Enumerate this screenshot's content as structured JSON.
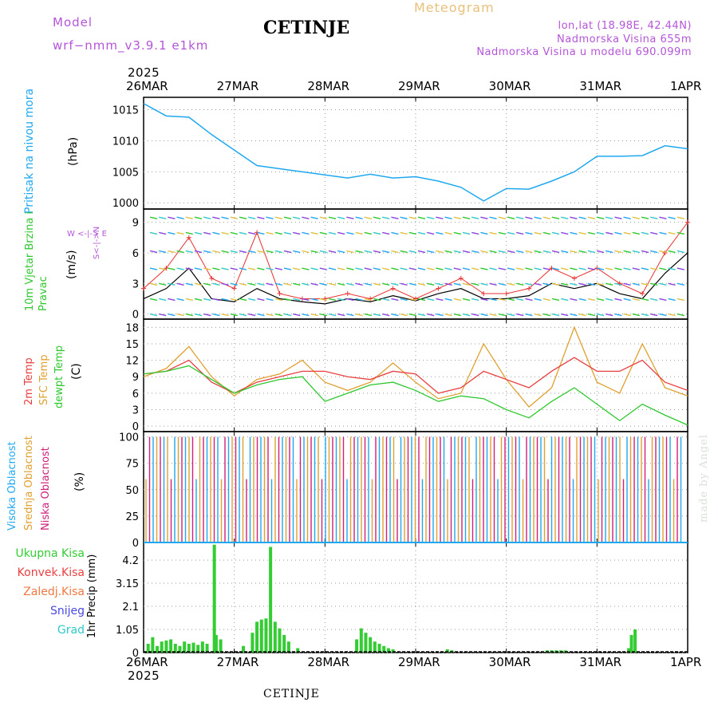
{
  "header": {
    "model_label": "Model",
    "model_name": "wrf−nmm_v3.9.1 e1km",
    "station": "CETINJE",
    "product": "Meteogram",
    "lonlat": "lon,lat (18.98E, 42.44N)",
    "elevation": "Nadmorska Visina 655m",
    "model_elevation": "Nadmorska Visina u modelu 690.099m"
  },
  "time_axis": {
    "year": "2025",
    "days": [
      "26MAR",
      "27MAR",
      "28MAR",
      "29MAR",
      "30MAR",
      "31MAR",
      "1APR"
    ]
  },
  "footer": {
    "station": "CETINJE",
    "credit": "made by Angel"
  },
  "colors": {
    "pressure": "#1fa8f0",
    "wind_speed": "#000000",
    "wind_gust": "#e8312f",
    "temp2m": "#e84040",
    "sfc_temp": "#e0a030",
    "dewpoint": "#2ec82e",
    "cloud_high": "#1fa8f0",
    "cloud_mid": "#e0a030",
    "cloud_low": "#d0207a",
    "precip_total": "#33cc33",
    "precip_conv": "#e84040",
    "precip_frozen": "#f07840",
    "snow": "#4848e0",
    "graupel": "#30c8c8"
  },
  "chart_data": [
    {
      "type": "line",
      "title": "",
      "ylabel": "Pritisak na nivou mora",
      "unit": "(hPa)",
      "ylim": [
        999,
        1017
      ],
      "yticks": [
        1000,
        1005,
        1010,
        1015
      ],
      "x_days": [
        0,
        0.25,
        0.5,
        0.75,
        1,
        1.25,
        1.5,
        1.75,
        2,
        2.25,
        2.5,
        2.75,
        3,
        3.25,
        3.5,
        3.75,
        4,
        4.25,
        4.5,
        4.75,
        5,
        5.25,
        5.5,
        5.75,
        6
      ],
      "series": [
        {
          "values": [
            1016,
            1014,
            1013.8,
            1011,
            1008.5,
            1006,
            1005.5,
            1005,
            1004.5,
            1004,
            1004.6,
            1004,
            1004.2,
            1003.5,
            1002.5,
            1000.3,
            1002.3,
            1002.2,
            1003.5,
            1005,
            1007.5,
            1007.5,
            1007.6,
            1009.2,
            1008.7
          ]
        }
      ]
    },
    {
      "type": "line",
      "title": "",
      "ylabel": "10m Vjetar Brzina i Pravac",
      "unit": "(m/s)",
      "ylim": [
        -0.5,
        10.3
      ],
      "yticks": [
        0,
        3,
        6,
        9
      ],
      "compass": {
        "n": "N",
        "s": "S",
        "e": "E",
        "w": "W"
      },
      "x_days": [
        0,
        0.25,
        0.5,
        0.75,
        1,
        1.25,
        1.5,
        1.75,
        2,
        2.25,
        2.5,
        2.75,
        3,
        3.25,
        3.5,
        3.75,
        4,
        4.25,
        4.5,
        4.75,
        5,
        5.25,
        5.5,
        5.75,
        6
      ],
      "series": [
        {
          "name": "speed",
          "values": [
            1.5,
            2.5,
            4.5,
            1.5,
            1.2,
            2.5,
            1.5,
            1.2,
            1,
            1.5,
            1.2,
            1.8,
            1.3,
            2,
            2.5,
            1.5,
            1.5,
            1.8,
            3,
            2.5,
            3,
            2,
            1.5,
            4,
            6
          ]
        },
        {
          "name": "gust",
          "values": [
            2.5,
            4.5,
            7.5,
            3.5,
            2.5,
            8,
            2,
            1.5,
            1.5,
            2,
            1.5,
            2.5,
            1.5,
            2.5,
            3.5,
            2,
            2,
            2.5,
            4.5,
            3.5,
            4.5,
            3,
            2,
            6,
            9
          ]
        }
      ]
    },
    {
      "type": "line",
      "title": "",
      "ylabel": "2m Temp / SFC Temp / dewpt Temp",
      "unit": "(C)",
      "ylim": [
        -1,
        19.5
      ],
      "yticks": [
        0,
        3,
        6,
        9,
        12,
        15,
        18
      ],
      "x_days": [
        0,
        0.25,
        0.5,
        0.75,
        1,
        1.25,
        1.5,
        1.75,
        2,
        2.25,
        2.5,
        2.75,
        3,
        3.25,
        3.5,
        3.75,
        4,
        4.25,
        4.5,
        4.75,
        5,
        5.25,
        5.5,
        5.75,
        6
      ],
      "series": [
        {
          "name": "2m Temp",
          "values": [
            9.5,
            10,
            12,
            8,
            6,
            8,
            9,
            10,
            10,
            9,
            8.5,
            10,
            9.5,
            6,
            7,
            10,
            8.5,
            7,
            10,
            12.5,
            10,
            10,
            12,
            8,
            6.5
          ]
        },
        {
          "name": "SFC Temp",
          "values": [
            9,
            10.5,
            14.5,
            9,
            5.5,
            8.5,
            9.5,
            12,
            8,
            6.5,
            8,
            11.5,
            8,
            5,
            6,
            15,
            8.5,
            3.5,
            7,
            18,
            8,
            6,
            15,
            7,
            5.5
          ]
        },
        {
          "name": "dewpt Temp",
          "values": [
            9.5,
            10,
            11,
            8.5,
            6,
            7.5,
            8.5,
            9,
            4.5,
            6,
            7.5,
            8,
            6.5,
            4.5,
            5.5,
            5,
            3,
            1.5,
            4.5,
            7,
            4,
            1,
            4,
            2,
            0.2
          ]
        }
      ]
    },
    {
      "type": "bar",
      "title": "",
      "ylabel": "Visoka Oblacnost / Srednja Oblacnost / Niska Oblacnost",
      "unit": "(%)",
      "ylim": [
        0,
        105
      ],
      "yticks": [
        0,
        25,
        50,
        75,
        100
      ]
    },
    {
      "type": "bar",
      "title": "",
      "ylabel": "1hr Precip",
      "unit": "(mm)",
      "ylim": [
        0,
        5.0
      ],
      "yticks": [
        0,
        1.05,
        2.1,
        3.15,
        4.2
      ],
      "legend": [
        "Ukupna Kisa",
        "Konvek.Kisa",
        "Zaledj.Kisa",
        "Snijeg",
        "Grad"
      ],
      "x_days": [
        0.05,
        0.1,
        0.15,
        0.2,
        0.25,
        0.3,
        0.35,
        0.4,
        0.45,
        0.5,
        0.55,
        0.6,
        0.65,
        0.7,
        0.78,
        0.8,
        0.85,
        1.1,
        1.2,
        1.25,
        1.3,
        1.35,
        1.4,
        1.45,
        1.5,
        1.55,
        1.6,
        1.7,
        2.35,
        2.4,
        2.45,
        2.5,
        2.55,
        2.6,
        2.65,
        2.7,
        2.75,
        3.35,
        3.4,
        4.45,
        4.5,
        4.55,
        4.6,
        4.65,
        5.35,
        5.38,
        5.42
      ],
      "values": [
        0.4,
        0.7,
        0.3,
        0.5,
        0.55,
        0.6,
        0.4,
        0.3,
        0.5,
        0.4,
        0.45,
        0.35,
        0.5,
        0.4,
        4.9,
        0.8,
        0.6,
        0.3,
        0.9,
        1.4,
        1.5,
        1.55,
        4.8,
        1.4,
        1.1,
        0.8,
        0.5,
        0.2,
        0.6,
        1.1,
        0.9,
        0.7,
        0.5,
        0.4,
        0.3,
        0.2,
        0.15,
        0.15,
        0.1,
        0.1,
        0.1,
        0.1,
        0.1,
        0.1,
        0.2,
        0.8,
        1.05
      ]
    }
  ]
}
